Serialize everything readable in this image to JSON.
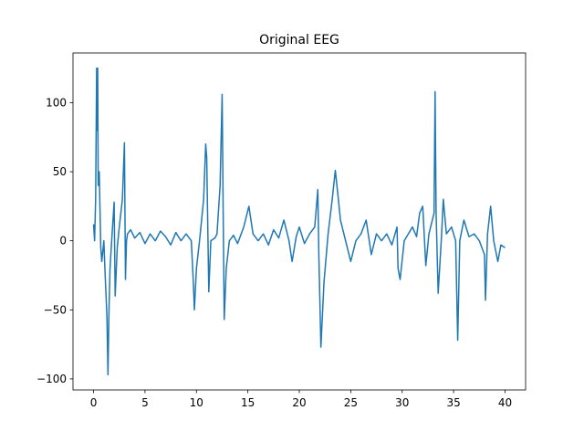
{
  "chart_data": {
    "type": "line",
    "title": "Original EEG",
    "x": [
      0,
      0.1,
      0.2,
      0.3,
      0.35,
      0.4,
      0.45,
      0.55,
      0.7,
      0.8,
      1.0,
      1.1,
      1.3,
      1.4,
      1.5,
      1.6,
      1.8,
      2.0,
      2.1,
      2.3,
      2.5,
      2.8,
      3.0,
      3.1,
      3.2,
      3.3,
      3.6,
      4.0,
      4.5,
      5.0,
      5.5,
      6.0,
      6.5,
      7.0,
      7.5,
      8.0,
      8.5,
      9.0,
      9.5,
      9.7,
      9.8,
      10.0,
      10.3,
      10.7,
      10.9,
      11.0,
      11.2,
      11.4,
      11.8,
      12.0,
      12.3,
      12.5,
      12.6,
      12.7,
      12.9,
      13.2,
      13.6,
      14.0,
      14.6,
      15.1,
      15.5,
      16.0,
      16.5,
      17.0,
      17.5,
      18.0,
      18.5,
      19.0,
      19.3,
      19.7,
      20.0,
      20.5,
      21.0,
      21.5,
      21.8,
      21.9,
      22.1,
      22.4,
      22.8,
      23.2,
      23.5,
      23.8,
      24.0,
      24.5,
      25.0,
      25.5,
      26.0,
      26.5,
      27.0,
      27.5,
      28.0,
      28.5,
      29.0,
      29.5,
      29.6,
      29.8,
      30.2,
      30.6,
      31.0,
      31.4,
      31.7,
      32.0,
      32.3,
      32.6,
      33.1,
      33.2,
      33.3,
      33.5,
      33.8,
      34.0,
      34.3,
      34.8,
      35.2,
      35.4,
      35.6,
      36.0,
      36.5,
      37.0,
      37.5,
      38.0,
      38.1,
      38.3,
      38.6,
      38.9,
      39.3,
      39.6,
      40.0
    ],
    "series": [
      {
        "color": "#1f77b4",
        "values": [
          12,
          0,
          30,
          125,
          80,
          125,
          40,
          50,
          -5,
          -15,
          0,
          -20,
          -55,
          -97,
          -50,
          -20,
          5,
          28,
          -40,
          -5,
          10,
          30,
          71,
          -28,
          0,
          5,
          8,
          2,
          6,
          -2,
          5,
          0,
          7,
          3,
          -3,
          6,
          0,
          5,
          0,
          -30,
          -50,
          -20,
          0,
          30,
          70,
          60,
          -37,
          0,
          2,
          5,
          40,
          106,
          20,
          -57,
          -20,
          0,
          4,
          -2,
          10,
          25,
          5,
          0,
          5,
          -3,
          8,
          2,
          15,
          0,
          -15,
          3,
          10,
          -2,
          5,
          10,
          37,
          -10,
          -77,
          -30,
          5,
          30,
          51,
          30,
          15,
          0,
          -15,
          0,
          5,
          15,
          -10,
          5,
          0,
          5,
          -3,
          10,
          -20,
          -28,
          0,
          5,
          10,
          3,
          20,
          25,
          -18,
          5,
          20,
          108,
          20,
          -38,
          0,
          30,
          5,
          10,
          0,
          -72,
          0,
          15,
          3,
          5,
          0,
          -10,
          -43,
          5,
          25,
          0,
          -15,
          -3,
          -5
        ]
      }
    ],
    "xlim": [
      -2,
      42
    ],
    "ylim": [
      -108,
      136
    ],
    "xticks": [
      0,
      5,
      10,
      15,
      20,
      25,
      30,
      35,
      40
    ],
    "yticks": [
      {
        "value": -100,
        "label": "−100"
      },
      {
        "value": -50,
        "label": "−50"
      },
      0,
      50,
      100
    ]
  }
}
